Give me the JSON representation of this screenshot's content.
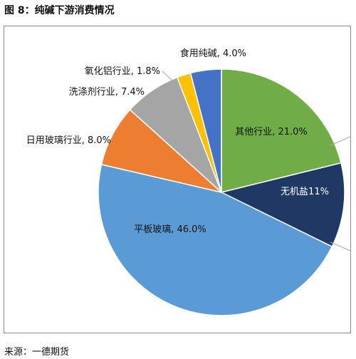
{
  "figure": {
    "title": "图 8：纯碱下游消费情况",
    "source": "来源：一德期货"
  },
  "chart_data": {
    "type": "pie",
    "slices": [
      {
        "label": "其他行业, 21.0%",
        "value": 21.0,
        "color": "#70ad47"
      },
      {
        "label": "无机盐11%",
        "value": 11.0,
        "color": "#203864"
      },
      {
        "label": "平板玻璃, 46.0%",
        "value": 46.0,
        "color": "#5b9bd5"
      },
      {
        "label": "日用玻璃行业, 8.0%",
        "value": 8.0,
        "color": "#ed7d31"
      },
      {
        "label": "洗涤剂行业, 7.4%",
        "value": 7.4,
        "color": "#a5a5a5"
      },
      {
        "label": "氧化铝行业, 1.8%",
        "value": 1.8,
        "color": "#ffc000"
      },
      {
        "label": "食用纯碱, 4.0%",
        "value": 4.0,
        "color": "#4472c4"
      }
    ]
  }
}
